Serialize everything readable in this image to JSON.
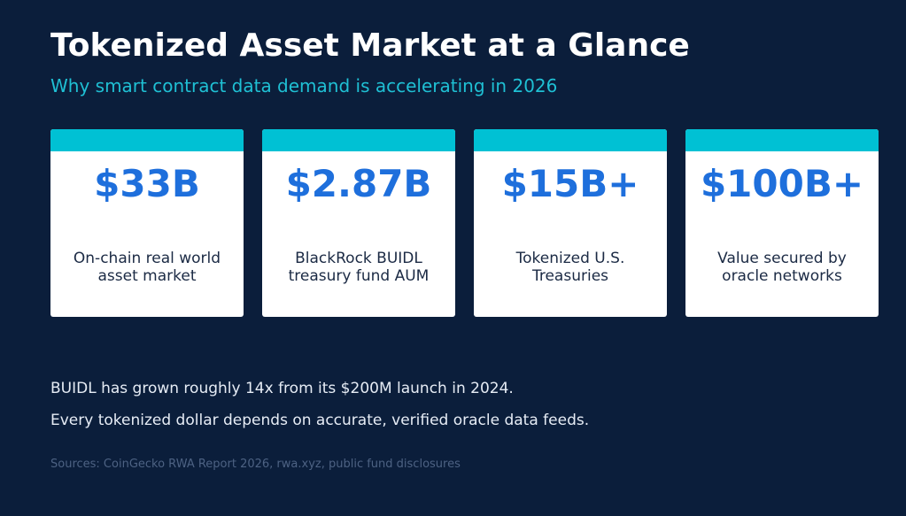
{
  "header": {
    "title": "Tokenized Asset Market at a Glance",
    "subtitle": "Why smart contract data demand is accelerating in 2026"
  },
  "cards": [
    {
      "value": "$33B",
      "label": "On-chain real world asset market"
    },
    {
      "value": "$2.87B",
      "label": "BlackRock BUIDL treasury fund AUM"
    },
    {
      "value": "$15B+",
      "label": "Tokenized U.S. Treasuries"
    },
    {
      "value": "$100B+",
      "label": "Value secured by oracle networks"
    }
  ],
  "notes": [
    "BUIDL has grown roughly 14x from its $200M launch in 2024.",
    "Every tokenized dollar depends on accurate, verified oracle data feeds."
  ],
  "footer": {
    "sources": "Sources: CoinGecko RWA Report 2026, rwa.xyz, public fund disclosures"
  },
  "colors": {
    "background": "#0b1e3b",
    "accent_cyan": "#00c1d4",
    "value_blue": "#1e6fdc",
    "card_bg": "#ffffff"
  }
}
